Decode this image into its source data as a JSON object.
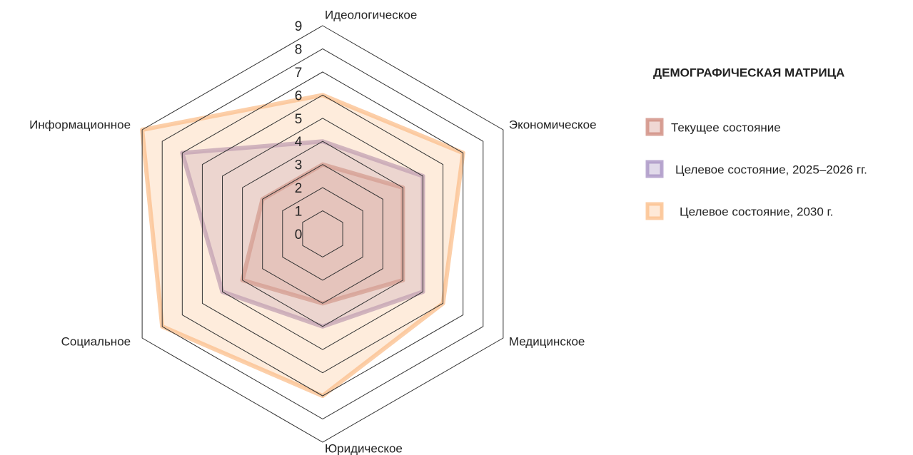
{
  "chart_data": {
    "type": "radar",
    "legend_title": "ДЕМОГРАФИЧЕСКАЯ МАТРИЦА",
    "categories": [
      "Идеологическое",
      "Экономическое",
      "Медицинское",
      "Юридическое",
      "Социальное",
      "Информационное"
    ],
    "rlim": [
      0,
      9
    ],
    "rticks": [
      0,
      1,
      2,
      3,
      4,
      5,
      6,
      7,
      8,
      9
    ],
    "grid": true,
    "legend": "right",
    "series": [
      {
        "name": "Текущее состояние",
        "color": "#d08c80",
        "values": [
          3,
          4,
          4,
          3,
          4,
          3
        ]
      },
      {
        "name": "Целевое состояние, 2025–2026 гг.",
        "color": "#a994c4",
        "values": [
          4,
          5,
          5,
          4,
          5,
          7
        ]
      },
      {
        "name": "Целевое состояние, 2030 г.",
        "color": "#fbbf8c",
        "values": [
          6,
          7,
          6,
          7,
          8,
          9
        ]
      }
    ]
  }
}
